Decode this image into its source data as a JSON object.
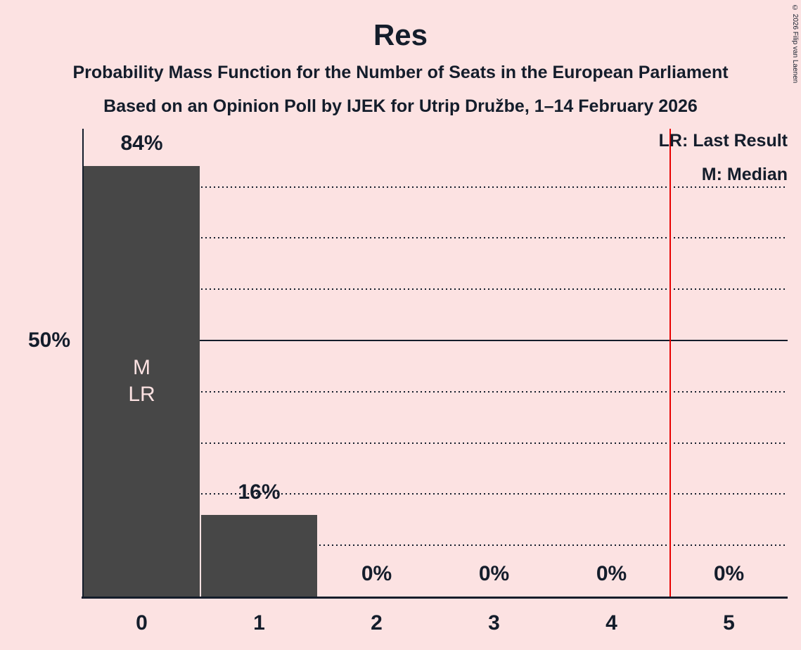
{
  "title": "Res",
  "subtitle1": "Probability Mass Function for the Number of Seats in the European Parliament",
  "subtitle2": "Based on an Opinion Poll by IJEK for Utrip Družbe, 1–14 February 2026",
  "copyright": "© 2026 Filip van Laenen",
  "legend": {
    "lr": "LR: Last Result",
    "m": "M: Median"
  },
  "y_axis_label": "50%",
  "chart_data": {
    "type": "bar",
    "title": "Res",
    "categories": [
      "0",
      "1",
      "2",
      "3",
      "4",
      "5"
    ],
    "values": [
      84,
      16,
      0,
      0,
      0,
      0
    ],
    "value_labels": [
      "84%",
      "16%",
      "0%",
      "0%",
      "0%",
      "0%"
    ],
    "xlabel": "",
    "ylabel": "",
    "ylim": [
      0,
      91
    ],
    "grid": "dotted-horizontal",
    "gridlines_percent": [
      10,
      20,
      30,
      40,
      50,
      60,
      70,
      80
    ],
    "solid_gridline_percent": 50,
    "annotations": [
      {
        "bar": 0,
        "lines": [
          "M",
          "LR"
        ]
      }
    ],
    "median_category": "0",
    "last_result_category": "0",
    "red_line_x": 4.5,
    "legend_position": "top-right",
    "colors": {
      "background": "#fce2e2",
      "bar": "#474747",
      "text": "#141d2b",
      "red_line": "#e80000",
      "bar_label": "#fce2e2"
    }
  }
}
